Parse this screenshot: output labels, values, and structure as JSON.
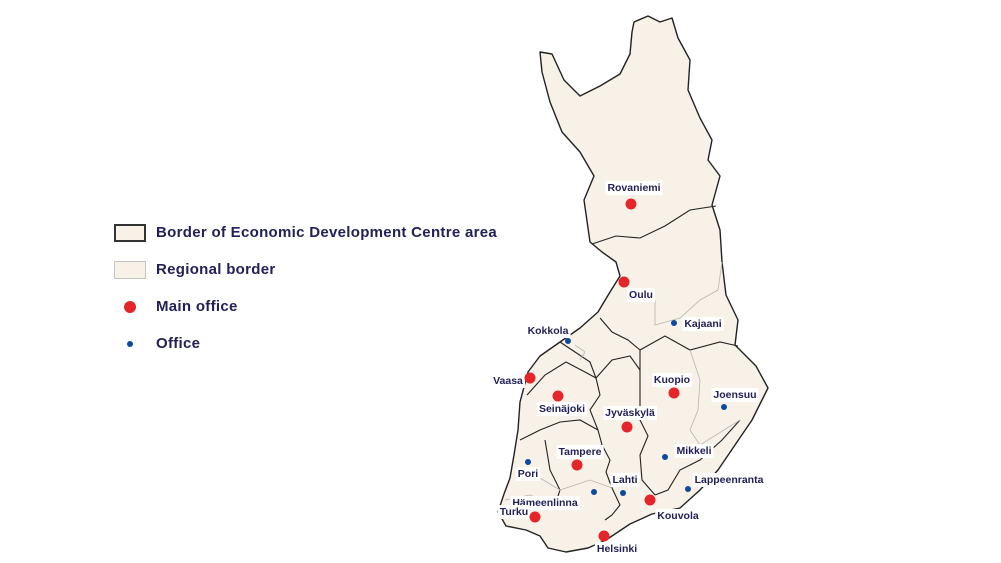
{
  "legend": {
    "edc_border": "Border of Economic Development Centre area",
    "regional_border": "Regional border",
    "main_office": "Main office",
    "office": "Office"
  },
  "colors": {
    "land": "#f7f1e7",
    "edc_border": "#222222",
    "regional_border": "#b9b5ae",
    "main_office": "#e4262a",
    "office": "#0b4a9c",
    "text": "#232057"
  },
  "cities": [
    {
      "name": "Rovaniemi",
      "type": "main"
    },
    {
      "name": "Oulu",
      "type": "main"
    },
    {
      "name": "Kajaani",
      "type": "office"
    },
    {
      "name": "Kokkola",
      "type": "office"
    },
    {
      "name": "Vaasa",
      "type": "main"
    },
    {
      "name": "Seinäjoki",
      "type": "main"
    },
    {
      "name": "Kuopio",
      "type": "main"
    },
    {
      "name": "Joensuu",
      "type": "office"
    },
    {
      "name": "Jyväskylä",
      "type": "main"
    },
    {
      "name": "Tampere",
      "type": "main"
    },
    {
      "name": "Mikkeli",
      "type": "office"
    },
    {
      "name": "Pori",
      "type": "office"
    },
    {
      "name": "Lahti",
      "type": "office"
    },
    {
      "name": "Hämeenlinna",
      "type": "office"
    },
    {
      "name": "Lappeenranta",
      "type": "office"
    },
    {
      "name": "Kouvola",
      "type": "main"
    },
    {
      "name": "Turku",
      "type": "main"
    },
    {
      "name": "Helsinki",
      "type": "main"
    }
  ]
}
